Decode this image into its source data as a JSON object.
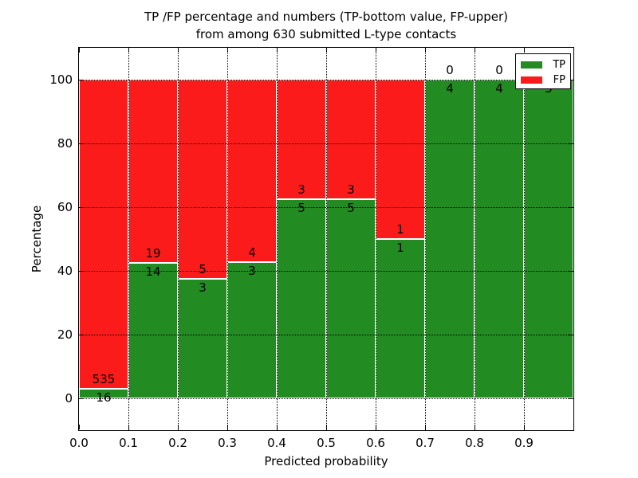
{
  "chart": {
    "title_line1": "TP /FP percentage and numbers (TP-bottom value, FP-upper)",
    "title_line2": "from among 630 submitted L-type contacts",
    "xlabel": "Predicted probability",
    "ylabel": "Percentage"
  },
  "chart_data": {
    "type": "bar",
    "stacked": true,
    "normalized_to_percent": true,
    "title": "TP /FP percentage and numbers (TP-bottom value, FP-upper) from among 630 submitted L-type contacts",
    "xlabel": "Predicted probability",
    "ylabel": "Percentage",
    "total_contacts": 630,
    "xlim": [
      0.0,
      1.0
    ],
    "ylim": [
      -10,
      110
    ],
    "bin_width": 0.1,
    "xtick_labels": [
      "0.0",
      "0.1",
      "0.2",
      "0.3",
      "0.4",
      "0.5",
      "0.6",
      "0.7",
      "0.8",
      "0.9"
    ],
    "ytick_values": [
      0,
      20,
      40,
      60,
      80,
      100
    ],
    "grid": "dotted black, drawn over bars",
    "bar_edge_color": "#ffffff",
    "categories": [
      "0.0-0.1",
      "0.1-0.2",
      "0.2-0.3",
      "0.3-0.4",
      "0.4-0.5",
      "0.5-0.6",
      "0.6-0.7",
      "0.7-0.8",
      "0.8-0.9",
      "0.9-1.0"
    ],
    "series": [
      {
        "name": "TP",
        "color": "#228B22",
        "counts": [
          16,
          14,
          3,
          3,
          5,
          5,
          1,
          4,
          4,
          5
        ]
      },
      {
        "name": "FP",
        "color": "#FB1B1B",
        "counts": [
          535,
          19,
          5,
          4,
          3,
          3,
          1,
          0,
          0,
          0
        ]
      }
    ],
    "tp_percent_per_bin": [
      2.9,
      42.4,
      37.5,
      42.9,
      62.5,
      62.5,
      50.0,
      100.0,
      100.0,
      100.0
    ],
    "legend": {
      "position": "upper right",
      "entries": [
        {
          "label": "TP",
          "color": "#228B22"
        },
        {
          "label": "FP",
          "color": "#FB1B1B"
        }
      ]
    }
  }
}
